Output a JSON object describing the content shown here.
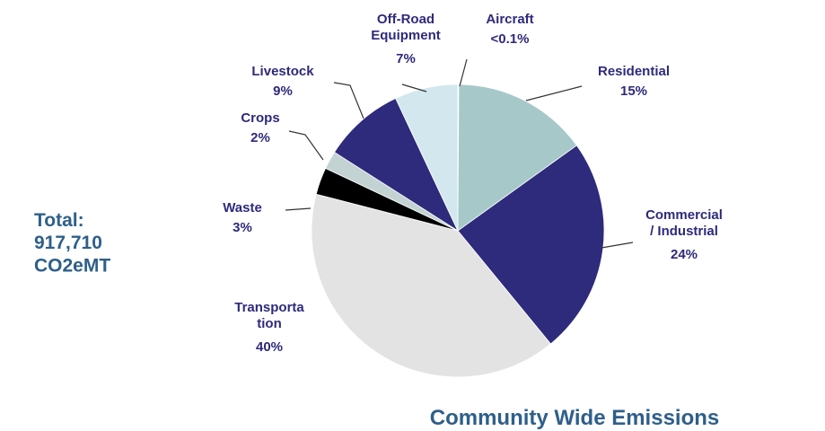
{
  "chart_data": {
    "type": "pie",
    "title": "Community Wide Emissions",
    "annotation": "Total:\n917,710\nCO2eMT",
    "categories": [
      "Aircraft",
      "Residential",
      "Commercial\n/ Industrial",
      "Transporta\ntion",
      "Waste",
      "Crops",
      "Livestock",
      "Off-Road\nEquipment"
    ],
    "values": [
      0.1,
      15,
      24,
      40,
      3,
      2,
      9,
      7
    ],
    "value_labels": [
      "<0.1%",
      "15%",
      "24%",
      "40%",
      "3%",
      "2%",
      "9%",
      "7%"
    ],
    "colors": [
      "#d2e8ee",
      "#a6c8c8",
      "#2e2a7c",
      "#e3e3e3",
      "#000000",
      "#c3d3d3",
      "#2e2a7c",
      "#d2e8ee"
    ]
  }
}
